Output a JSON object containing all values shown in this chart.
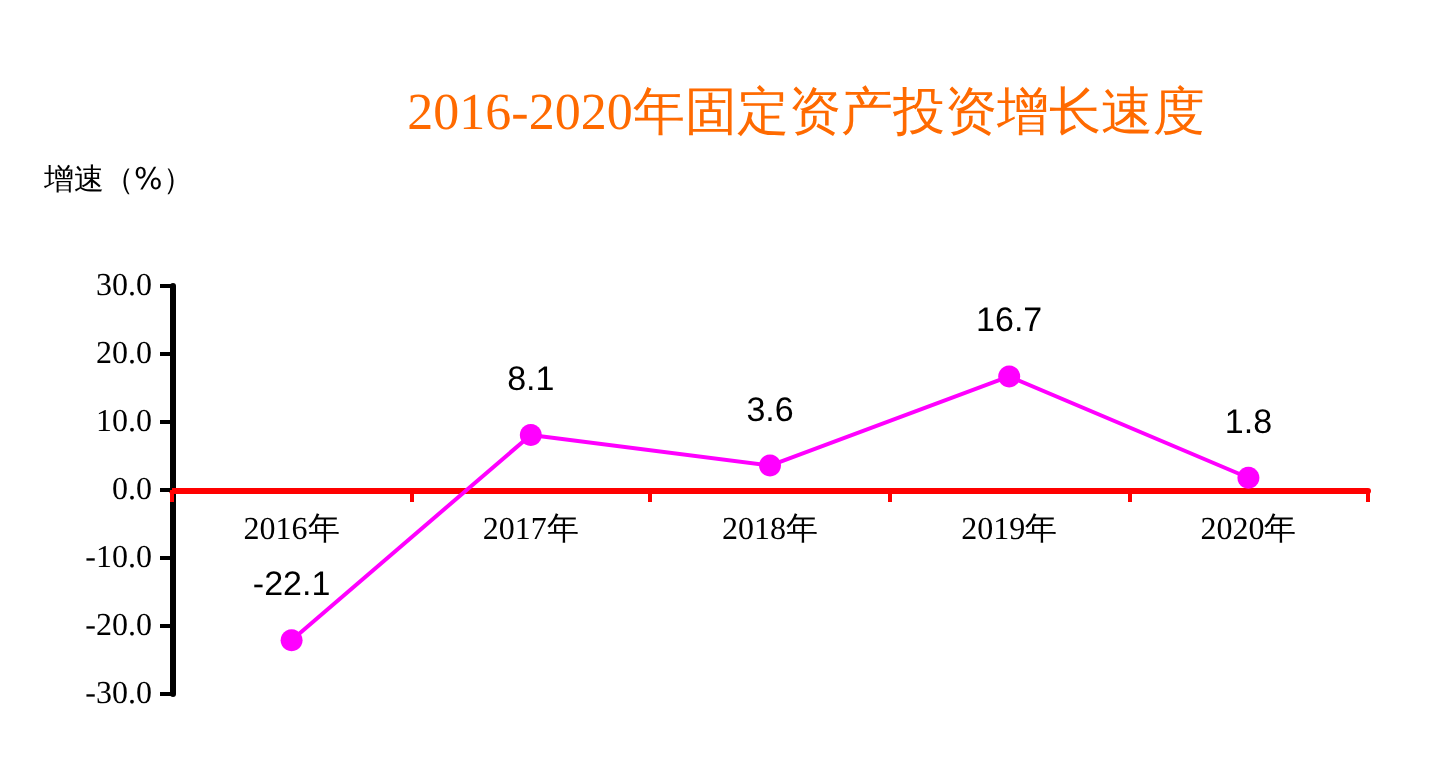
{
  "chart_data": {
    "type": "line",
    "title": "2016-2020年固定资产投资增长速度",
    "ylabel": "增速（%）",
    "categories": [
      "2016年",
      "2017年",
      "2018年",
      "2019年",
      "2020年"
    ],
    "series": [
      {
        "color": "#ff00ff",
        "values": [
          -22.1,
          8.1,
          3.6,
          16.7,
          1.8
        ]
      }
    ],
    "ylim": [
      -30,
      30
    ],
    "yticks": [
      {
        "value": -30,
        "label": "-30.0"
      },
      {
        "value": -20,
        "label": "-20.0"
      },
      {
        "value": -10,
        "label": "-10.0"
      },
      {
        "value": 0,
        "label": "0.0"
      },
      {
        "value": 10,
        "label": "10.0"
      },
      {
        "value": 20,
        "label": "20.0"
      },
      {
        "value": 30,
        "label": "30.0"
      }
    ],
    "grid": false,
    "marker": "circle",
    "line_style": "solid",
    "data_labels": true
  }
}
